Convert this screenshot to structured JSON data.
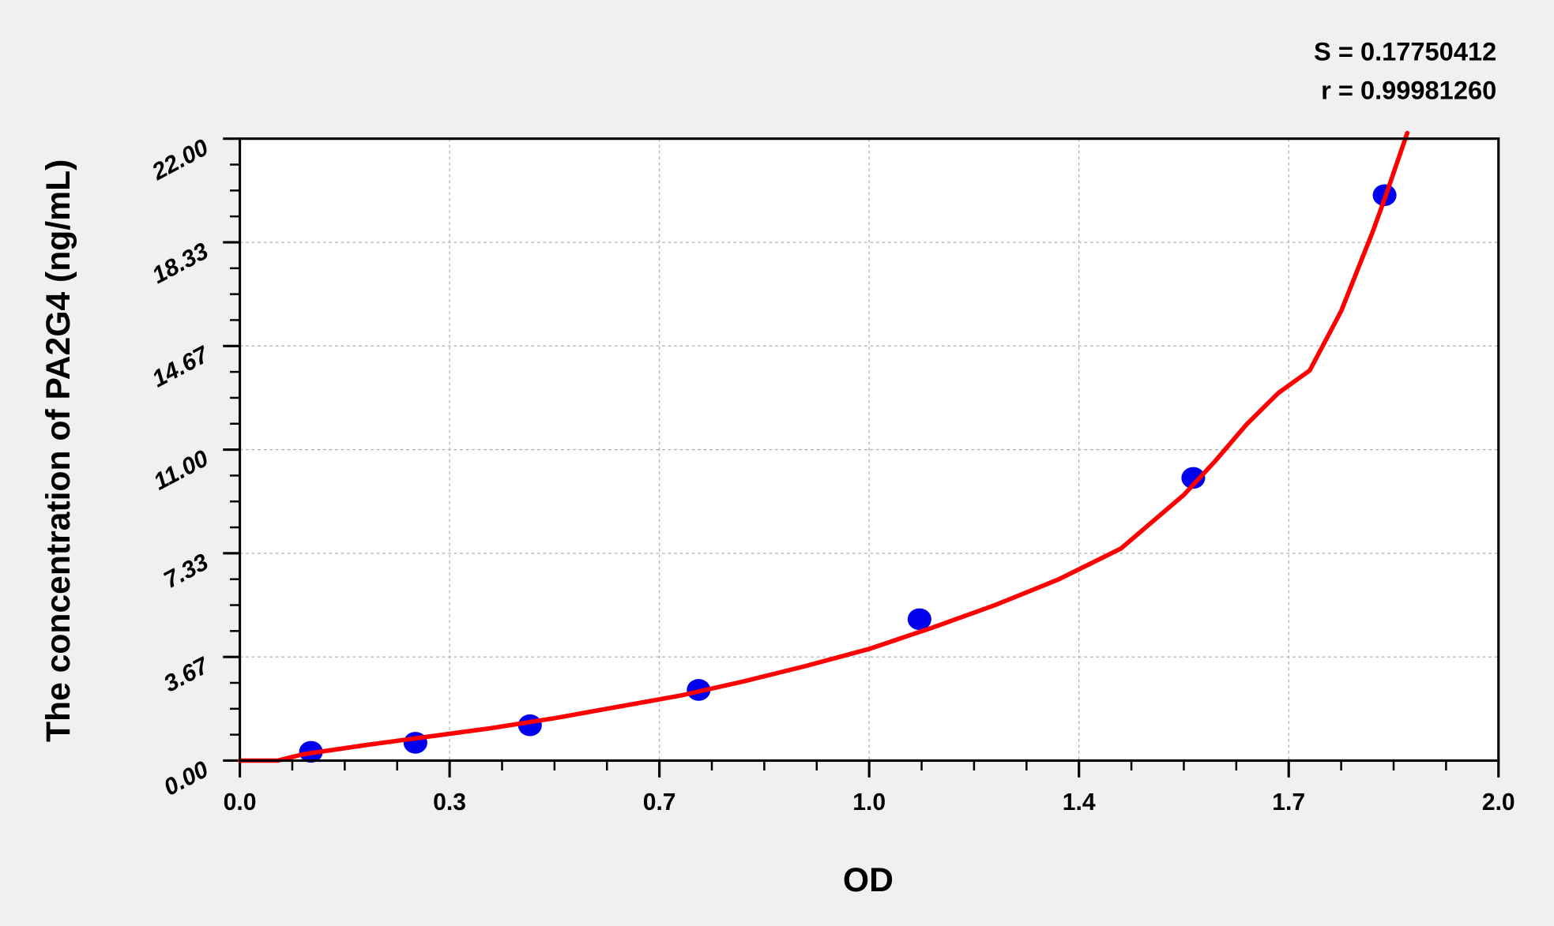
{
  "chart_data": {
    "type": "scatter",
    "xlabel": "OD",
    "ylabel": "The concentration of PA2G4 (ng/mL)",
    "xlim": [
      0,
      2.0
    ],
    "ylim": [
      0,
      22.0
    ],
    "x_ticks": [
      "0.0",
      "0.3",
      "0.7",
      "1.0",
      "1.4",
      "1.7",
      "2.0"
    ],
    "y_ticks": [
      "0.00",
      "3.67",
      "7.33",
      "11.00",
      "14.67",
      "18.33",
      "22.00"
    ],
    "grid": true,
    "annotations": [
      "S = 0.17750412",
      "r = 0.99981260"
    ],
    "series": [
      {
        "type": "scatter",
        "color": "#0000ee",
        "x": [
          0.113,
          0.279,
          0.461,
          0.729,
          1.08,
          1.515,
          1.819
        ],
        "y": [
          0.31,
          0.63,
          1.25,
          2.5,
          5,
          10,
          20
        ]
      },
      {
        "type": "line",
        "color": "#ff0000",
        "x": [
          0,
          0.06,
          0.1,
          0.2,
          0.3,
          0.4,
          0.5,
          0.6,
          0.7,
          0.8,
          0.9,
          1.0,
          1.1,
          1.2,
          1.3,
          1.4,
          1.5,
          1.55,
          1.6,
          1.65,
          1.7,
          1.75,
          1.8,
          1.82,
          1.855
        ],
        "y": [
          0,
          0,
          0.22,
          0.55,
          0.85,
          1.15,
          1.5,
          1.9,
          2.3,
          2.8,
          3.35,
          3.95,
          4.7,
          5.5,
          6.4,
          7.5,
          9.4,
          10.6,
          11.9,
          13.0,
          13.8,
          15.9,
          18.7,
          19.93,
          22.2
        ]
      }
    ]
  }
}
